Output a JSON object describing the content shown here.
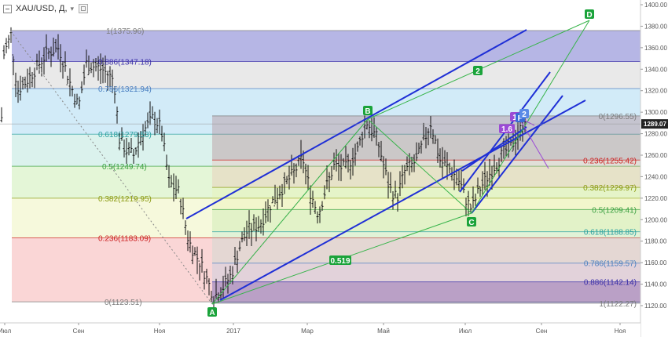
{
  "header": {
    "symbol": "XAU/USD, Д,",
    "caret": "▾"
  },
  "colors": {
    "up_line": "#1f2fd6",
    "pattern_line": "#37b44a",
    "purple_line": "#9b4ad6",
    "label_green": "#1aa33a",
    "bars": "#111111"
  },
  "chart_data": {
    "type": "ohlc",
    "symbol": "XAU/USD",
    "timeframe": "Д",
    "ylim": [
      1113,
      1406
    ],
    "y_ticks": [
      "1120.00",
      "1140.00",
      "1160.00",
      "1180.00",
      "1200.00",
      "1220.00",
      "1240.00",
      "1260.00",
      "1280.00",
      "1300.00",
      "1320.00",
      "1340.00",
      "1360.00",
      "1380.00",
      "1400.00"
    ],
    "x_labels": [
      "Июл",
      "Сен",
      "Ноя",
      "2017",
      "Мар",
      "Май",
      "Июл",
      "Сен",
      "Ноя"
    ],
    "current_price": "1289.07",
    "fib_left": {
      "price_range": [
        1123.51,
        1375.96
      ],
      "levels": [
        {
          "label": "1(1375.96)",
          "value": 1375.96,
          "color": "#7a7a7a"
        },
        {
          "label": "0.886(1347.18)",
          "value": 1347.18,
          "color": "#3b2fa8"
        },
        {
          "label": "0.786(1321.94)",
          "value": 1321.94,
          "color": "#4a7fc0"
        },
        {
          "label": "0.618(1279.53)",
          "value": 1279.53,
          "color": "#2aa0a0"
        },
        {
          "label": "0.5(1249.74)",
          "value": 1249.74,
          "color": "#3aa040"
        },
        {
          "label": "0.382(1219.95)",
          "value": 1219.95,
          "color": "#8a9a10"
        },
        {
          "label": "0.236(1183.09)",
          "value": 1183.09,
          "color": "#cc2222"
        },
        {
          "label": "0(1123.51)",
          "value": 1123.51,
          "color": "#7a7a7a"
        }
      ]
    },
    "fib_right": {
      "price_range": [
        1122.27,
        1296.55
      ],
      "levels": [
        {
          "label": "0(1296.55)",
          "value": 1296.55,
          "color": "#7a7a7a"
        },
        {
          "label": "0.236(1255.42)",
          "value": 1255.42,
          "color": "#cc2222"
        },
        {
          "label": "0.382(1229.97)",
          "value": 1229.97,
          "color": "#8a9a10"
        },
        {
          "label": "0.5(1209.41)",
          "value": 1209.41,
          "color": "#3aa040"
        },
        {
          "label": "0.618(1188.85)",
          "value": 1188.85,
          "color": "#2aa0a0"
        },
        {
          "label": "0.786(1159.57)",
          "value": 1159.57,
          "color": "#4a7fc0"
        },
        {
          "label": "0.886(1142.14)",
          "value": 1142.14,
          "color": "#3b2fa8"
        },
        {
          "label": "1(1122.27)",
          "value": 1122.27,
          "color": "#7a7a7a"
        }
      ]
    },
    "points": [
      {
        "label": "A",
        "price": 1123.51
      },
      {
        "label": "B",
        "price": 1296.55
      },
      {
        "label": "C",
        "price": 1205
      },
      {
        "label": "D",
        "price": 1389
      }
    ],
    "annotations": [
      "2",
      "0.519",
      "1.6",
      "1",
      "P",
      "2"
    ]
  }
}
